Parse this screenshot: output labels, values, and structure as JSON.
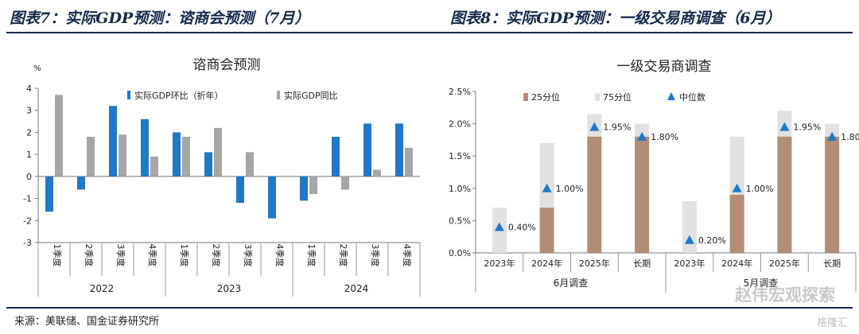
{
  "header": {
    "left_title": "图表7：实际GDP预测：谘商会预测（7月）",
    "right_title": "图表8：实际GDP预测：一级交易商调查（6月）"
  },
  "footer": {
    "source": "来源：美联储、国金证券研究所"
  },
  "watermark": {
    "text": "赵伟宏观探索",
    "brand": "格隆汇"
  },
  "colors": {
    "header": "#14284b",
    "blue": "#1f78c8",
    "gray": "#a6a6a6",
    "brown": "#b38d75",
    "lightgray": "#e1e1e1",
    "marker": "#1f78c8"
  },
  "chart_data": [
    {
      "type": "bar",
      "title": "谘商会预测",
      "ylabel": "%",
      "ylim": [
        -3,
        4
      ],
      "yticks": [
        4,
        3,
        2,
        1,
        0,
        -1,
        -2,
        -3
      ],
      "grid": false,
      "legend_position": "top-center",
      "categories": [
        "1季度",
        "2季度",
        "3季度",
        "4季度",
        "1季度",
        "2季度",
        "3季度",
        "4季度",
        "1季度",
        "2季度",
        "3季度",
        "4季度"
      ],
      "groups": [
        {
          "label": "2022",
          "start": 0,
          "end": 3
        },
        {
          "label": "2023",
          "start": 4,
          "end": 7
        },
        {
          "label": "2024",
          "start": 8,
          "end": 11
        }
      ],
      "series": [
        {
          "name": "实际GDP环比（折年）",
          "color": "#1f78c8",
          "values": [
            -1.6,
            -0.6,
            3.2,
            2.6,
            2.0,
            1.1,
            -1.2,
            -1.9,
            -1.1,
            1.8,
            2.4,
            2.4
          ]
        },
        {
          "name": "实际GDP同比",
          "color": "#a6a6a6",
          "values": [
            3.7,
            1.8,
            1.9,
            0.9,
            1.8,
            2.2,
            1.1,
            null,
            -0.8,
            -0.6,
            0.3,
            1.3
          ]
        }
      ]
    },
    {
      "type": "bar",
      "title": "一级交易商调查",
      "ylim": [
        0,
        2.5
      ],
      "yticks": [
        "2.5%",
        "2.0%",
        "1.5%",
        "1.0%",
        "0.5%",
        "0.0%"
      ],
      "grid": false,
      "legend_position": "top-center",
      "categories": [
        "2023年",
        "2024年",
        "2025年",
        "长期",
        "2023年",
        "2024年",
        "2025年",
        "长期"
      ],
      "groups": [
        {
          "label": "6月调查",
          "start": 0,
          "end": 3
        },
        {
          "label": "5月调查",
          "start": 4,
          "end": 7
        }
      ],
      "series": [
        {
          "name": "25分位",
          "color": "#b38d75",
          "values": [
            0.0,
            0.7,
            1.8,
            1.8,
            0.0,
            0.9,
            1.8,
            1.8
          ]
        },
        {
          "name": "75分位",
          "color": "#e1e1e1",
          "values": [
            0.7,
            1.7,
            2.15,
            2.0,
            0.8,
            1.8,
            2.2,
            2.0
          ]
        },
        {
          "name": "中位数",
          "color": "#1f78c8",
          "values": [
            0.4,
            1.0,
            1.95,
            1.8,
            0.2,
            1.0,
            1.95,
            1.8
          ]
        }
      ],
      "data_labels": [
        "0.40%",
        "1.00%",
        "1.95%",
        "1.80%",
        "0.20%",
        "1.00%",
        "1.95%",
        "1.80%"
      ]
    }
  ]
}
